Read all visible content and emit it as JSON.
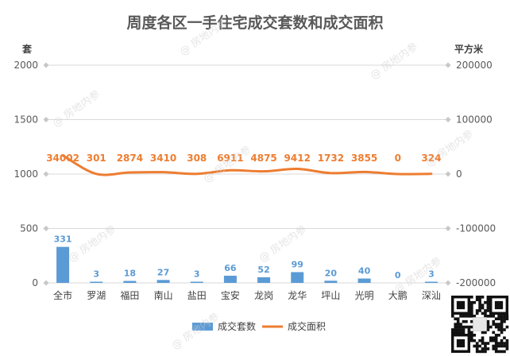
{
  "chart_data": {
    "type": "bar+line",
    "title": "周度各区一手住宅成交套数和成交面积",
    "categories": [
      "全市",
      "罗湖",
      "福田",
      "南山",
      "盐田",
      "宝安",
      "龙岗",
      "龙华",
      "坪山",
      "光明",
      "大鹏",
      "深汕"
    ],
    "series": [
      {
        "name": "成交套数",
        "type": "bar",
        "axis": "left",
        "color": "#5b9bd5",
        "values": [
          331,
          3,
          18,
          27,
          3,
          66,
          52,
          99,
          20,
          40,
          0,
          3
        ]
      },
      {
        "name": "成交面积",
        "type": "line",
        "axis": "right",
        "color": "#ed7d31",
        "values": [
          34002,
          301,
          2874,
          3410,
          308,
          6911,
          4875,
          9412,
          1732,
          3855,
          0,
          324
        ]
      }
    ],
    "left_axis": {
      "unit": "套",
      "min": 0,
      "max": 2000,
      "ticks": [
        0,
        500,
        1000,
        1500,
        2000
      ]
    },
    "right_axis": {
      "unit": "平方米",
      "min": -200000,
      "max": 200000,
      "ticks": [
        -200000,
        -100000,
        0,
        100000,
        200000
      ]
    },
    "legend_position": "bottom",
    "grid": true
  },
  "watermark_text": "@ 房地内参"
}
